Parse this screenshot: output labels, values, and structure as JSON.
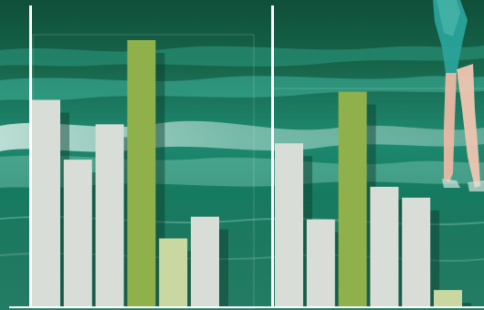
{
  "chart_data": [
    {
      "type": "bar",
      "title": "",
      "xlabel": "",
      "ylabel": "",
      "ylim": [
        0,
        100
      ],
      "grid": false,
      "tick_labels_shown": false,
      "values": [
        76,
        54,
        67,
        98,
        25,
        33
      ],
      "highlight": [
        false,
        false,
        false,
        true,
        false,
        false
      ],
      "bar_tone": [
        "light",
        "light",
        "light",
        "strong",
        "pale",
        "light"
      ]
    },
    {
      "type": "bar",
      "title": "",
      "xlabel": "",
      "ylabel": "",
      "ylim": [
        0,
        100
      ],
      "grid": false,
      "tick_labels_shown": false,
      "values": [
        60,
        32,
        79,
        44,
        40,
        6
      ],
      "highlight": [
        false,
        false,
        true,
        false,
        false,
        false
      ],
      "bar_tone": [
        "light",
        "light",
        "strong",
        "light",
        "light",
        "pale"
      ]
    }
  ],
  "colors": {
    "bar_light": "#d8ddd8",
    "bar_strong": "#8fb04a",
    "bar_pale": "#c8d8a0",
    "axis": "#ffffff",
    "bar_shadow": "#0a3a2a",
    "water_deep": "#0d5a42",
    "water_mid": "#1b8a6e",
    "water_light": "#3fb59a",
    "foam": "#cfe7df",
    "figure_swimsuit": "#2aa39a",
    "figure_skin": "#e9b9a4"
  }
}
